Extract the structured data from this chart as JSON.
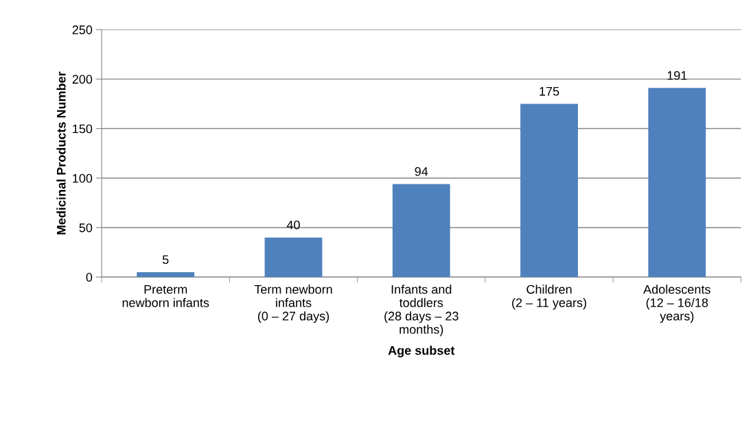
{
  "chart_data": {
    "type": "bar",
    "xlabel": "Age subset",
    "ylabel": "Medicinal Products Number",
    "categories": [
      "Preterm\nnewborn infants",
      "Term newborn\ninfants\n(0 – 27 days)",
      "Infants and\ntoddlers\n(28 days – 23\nmonths)",
      "Children\n(2 – 11 years)",
      "Adolescents\n(12 – 16/18\nyears)"
    ],
    "values": [
      5,
      40,
      94,
      175,
      191
    ],
    "color": "#4f81bd",
    "ylim": [
      0,
      250
    ],
    "yticks": [
      0,
      50,
      100,
      150,
      200,
      250
    ],
    "grid": "y",
    "data_labels": true,
    "legend": false
  }
}
